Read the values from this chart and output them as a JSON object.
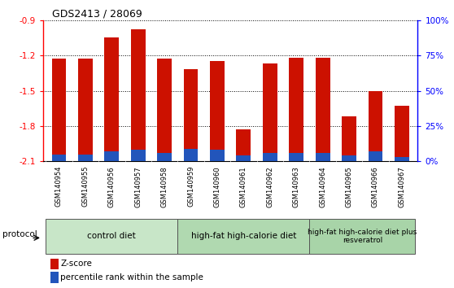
{
  "title": "GDS2413 / 28069",
  "samples": [
    "GSM140954",
    "GSM140955",
    "GSM140956",
    "GSM140957",
    "GSM140958",
    "GSM140959",
    "GSM140960",
    "GSM140961",
    "GSM140962",
    "GSM140963",
    "GSM140964",
    "GSM140965",
    "GSM140966",
    "GSM140967"
  ],
  "zscore": [
    -1.23,
    -1.23,
    -1.05,
    -0.98,
    -1.23,
    -1.32,
    -1.25,
    -1.83,
    -1.27,
    -1.22,
    -1.22,
    -1.72,
    -1.5,
    -1.63
  ],
  "percentile_pct": [
    5,
    5,
    7,
    8,
    6,
    9,
    8,
    4,
    6,
    6,
    6,
    4,
    7,
    3
  ],
  "bar_color": "#cc1100",
  "blue_color": "#2255bb",
  "y_min": -2.1,
  "y_max": -0.9,
  "y_ticks": [
    -0.9,
    -1.2,
    -1.5,
    -1.8,
    -2.1
  ],
  "right_y_ticks_labels": [
    "0%",
    "25%",
    "50%",
    "75%",
    "100%"
  ],
  "right_y_tick_pos": [
    -2.1,
    -1.8,
    -1.5,
    -1.2,
    -0.9
  ],
  "groups": [
    {
      "label": "control diet",
      "start": 0,
      "end": 4,
      "color": "#c8e6c8"
    },
    {
      "label": "high-fat high-calorie diet",
      "start": 5,
      "end": 9,
      "color": "#b0d9b0"
    },
    {
      "label": "high-fat high-calorie diet plus\nresveratrol",
      "start": 10,
      "end": 13,
      "color": "#a8d4a8"
    }
  ],
  "protocol_label": "protocol",
  "legend_zscore": "Z-score",
  "legend_percentile": "percentile rank within the sample",
  "bar_width": 0.55,
  "bg_color": "#f0f0f0",
  "plot_bg": "white",
  "gray_label_bg": "#d8d8d8"
}
